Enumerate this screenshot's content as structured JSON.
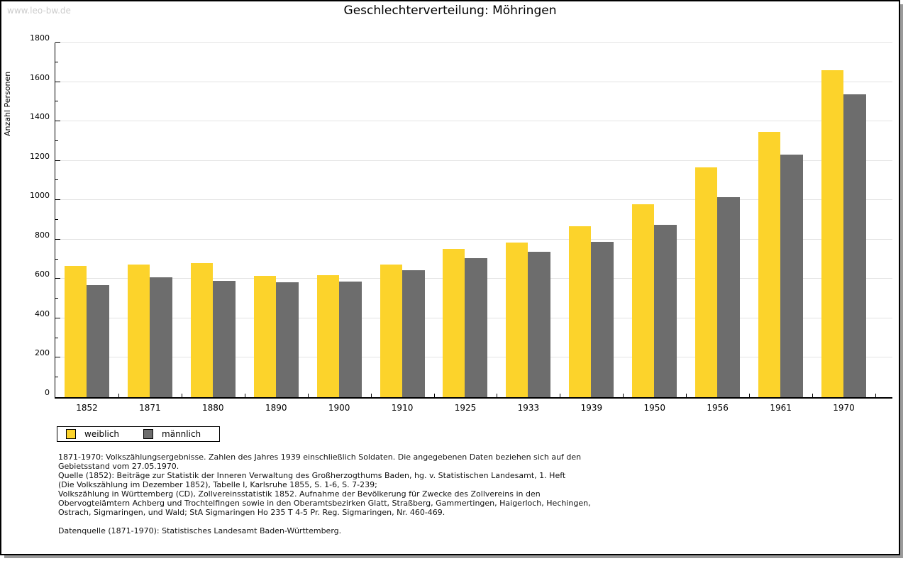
{
  "watermark": "www.leo-bw.de",
  "title": "Geschlechterverteilung: Möhringen",
  "colors": {
    "female_bar": "#fcd32b",
    "male_bar": "#6d6d6d",
    "gridline": "#e3e3e3",
    "watermark": "#cccccc",
    "axis": "#000000"
  },
  "chart_data": {
    "type": "bar",
    "title": "Geschlechterverteilung: Möhringen",
    "xlabel": "",
    "ylabel": "Anzahl Personen",
    "ylim": [
      0,
      1800
    ],
    "ytick_major": 200,
    "ytick_minor": 100,
    "grid": "horizontal-major",
    "legend_position": "bottom-left",
    "categories": [
      "1852",
      "1871",
      "1880",
      "1890",
      "1900",
      "1910",
      "1925",
      "1933",
      "1939",
      "1950",
      "1956",
      "1961",
      "1970"
    ],
    "series": [
      {
        "name": "weiblich",
        "color": "#fcd32b",
        "values": [
          667,
          674,
          679,
          615,
          619,
          674,
          751,
          783,
          866,
          979,
          1166,
          1346,
          1659
        ]
      },
      {
        "name": "männlich",
        "color": "#6d6d6d",
        "values": [
          568,
          607,
          590,
          583,
          587,
          645,
          704,
          737,
          790,
          873,
          1015,
          1230,
          1536
        ]
      }
    ]
  },
  "footnotes": {
    "lines": [
      "1871-1970: Volkszählungsergebnisse. Zahlen des Jahres 1939 einschließlich Soldaten. Die angegebenen Daten beziehen sich auf den",
      "Gebietsstand vom 27.05.1970.",
      "Quelle (1852): Beiträge zur Statistik der Inneren Verwaltung des Großherzogthums Baden, hg. v. Statistischen Landesamt, 1. Heft",
      "(Die Volkszählung im Dezember 1852), Tabelle I, Karlsruhe 1855, S. 1-6, S. 7-239;",
      "Volkszählung in Württemberg (CD), Zollvereinsstatistik 1852. Aufnahme der Bevölkerung für Zwecke des Zollvereins in den",
      "Obervogteiämtern Achberg und Trochtelfingen sowie in den Oberamtsbezirken Glatt, Straßberg, Gammertingen, Haigerloch, Hechingen,",
      "Ostrach, Sigmaringen, und Wald; StA Sigmaringen Ho 235 T 4-5 Pr. Reg. Sigmaringen, Nr. 460-469.",
      "",
      "Datenquelle (1871-1970): Statistisches Landesamt Baden-Württemberg."
    ]
  }
}
